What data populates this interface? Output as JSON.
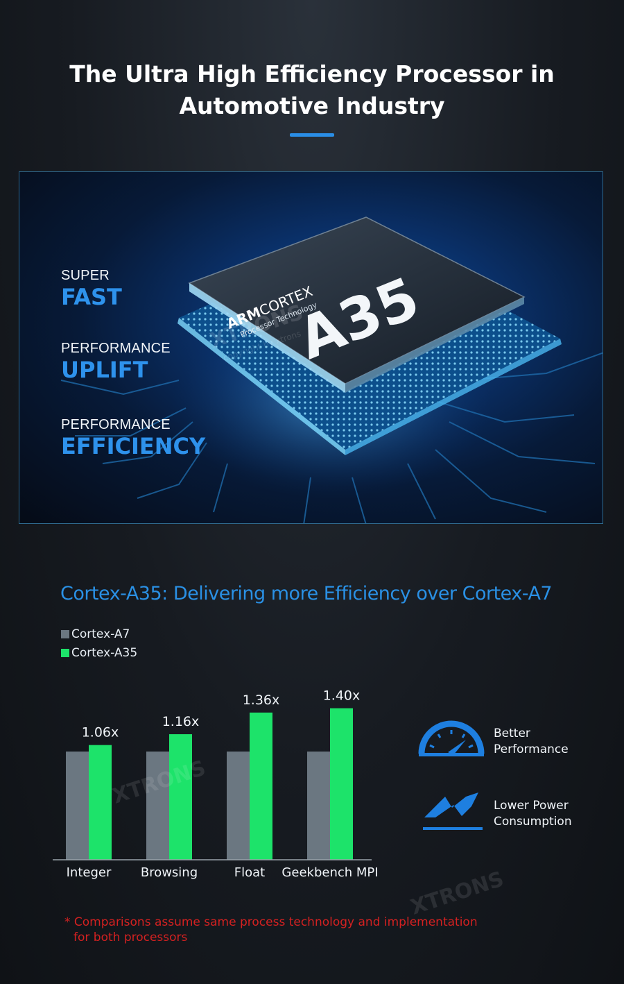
{
  "headline": {
    "line1": "The Ultra High Efficiency Processor in",
    "line2": "Automotive Industry"
  },
  "hero": {
    "chip": {
      "brand": "ARM",
      "series": "CORTEX",
      "subtitle": "Processor Technology",
      "model": "A35"
    },
    "features": [
      {
        "small": "SUPER",
        "big": "FAST"
      },
      {
        "small": "PERFORMANCE",
        "big": "UPLIFT"
      },
      {
        "small": "PERFORMANCE",
        "big": "EFFICIENCY"
      }
    ],
    "watermark": {
      "brand": "XTRONS",
      "copy": "copyright by xtrons"
    }
  },
  "chart_data": {
    "type": "bar",
    "title": "Cortex-A35: Delivering more Efficiency over Cortex-A7",
    "categories": [
      "Integer",
      "Browsing",
      "Float",
      "Geekbench MPI"
    ],
    "series": [
      {
        "name": "Cortex-A7",
        "values": [
          1.0,
          1.0,
          1.0,
          1.0
        ],
        "color": "#6b7781"
      },
      {
        "name": "Cortex-A35",
        "values": [
          1.06,
          1.16,
          1.36,
          1.4
        ],
        "color": "#1de36a"
      }
    ],
    "data_labels": [
      "1.06x",
      "1.16x",
      "1.36x",
      "1.40x"
    ],
    "legend_position": "top-left",
    "grid": false,
    "ylim": [
      0,
      1.5
    ]
  },
  "aside": {
    "items": [
      {
        "icon": "speedometer-icon",
        "line1": "Better",
        "line2": "Performance"
      },
      {
        "icon": "lightning-icon",
        "line1": "Lower Power",
        "line2": "Consumption"
      }
    ]
  },
  "footnote": {
    "line1": "* Comparisons assume same process technology and implementation",
    "line2": "for both processors"
  },
  "colors": {
    "accent": "#2a8ee6",
    "a35": "#1de36a",
    "a7": "#6b7781",
    "footnote": "#d42121"
  }
}
